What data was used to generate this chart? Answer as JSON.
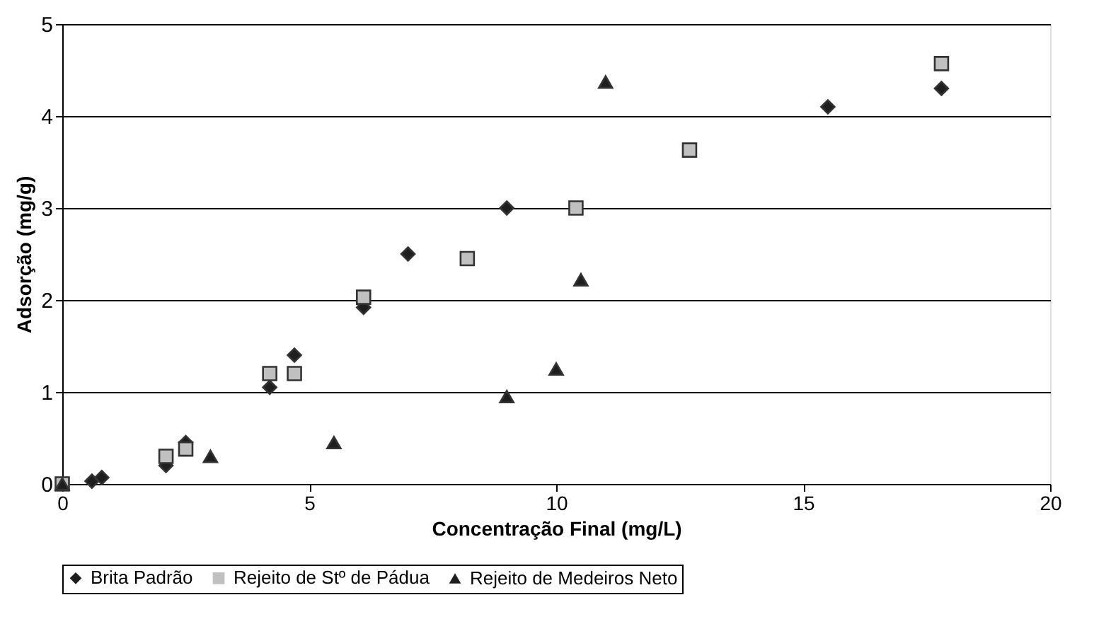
{
  "chart_data": {
    "type": "scatter",
    "xlabel": "Concentração Final (mg/L)",
    "ylabel": "Adsorção (mg/g)",
    "xlim": [
      0,
      20
    ],
    "xticks": [
      0,
      5,
      10,
      15,
      20
    ],
    "ylim": [
      0,
      5
    ],
    "yticks": [
      0,
      1,
      2,
      3,
      4,
      5
    ],
    "grid": "y",
    "legend": "bottom",
    "series": [
      {
        "name": "Brita Padrão",
        "color": "#1e1e1e",
        "marker": "diamond",
        "x": [
          0.6,
          0.8,
          2.1,
          2.5,
          4.2,
          4.7,
          6.1,
          7.0,
          9.0,
          15.5,
          17.8
        ],
        "values": [
          0.03,
          0.07,
          0.2,
          0.45,
          1.05,
          1.4,
          1.92,
          2.5,
          3.0,
          4.1,
          4.3
        ]
      },
      {
        "name": "Rejeito de Stº de Pádua",
        "color": "#c0c0c0",
        "marker": "square",
        "x": [
          0,
          2.1,
          2.5,
          4.2,
          4.7,
          6.1,
          8.2,
          10.4,
          12.7,
          17.8
        ],
        "values": [
          0,
          0.3,
          0.38,
          1.2,
          1.2,
          2.03,
          2.45,
          3.0,
          3.63,
          4.57
        ]
      },
      {
        "name": "Rejeito de Medeiros Neto",
        "color": "#1e1e1e",
        "marker": "triangle",
        "x": [
          0,
          3.0,
          5.5,
          9.0,
          10.0,
          10.5,
          11.0
        ],
        "values": [
          0,
          0.3,
          0.45,
          0.95,
          1.25,
          2.22,
          4.37
        ]
      }
    ]
  }
}
